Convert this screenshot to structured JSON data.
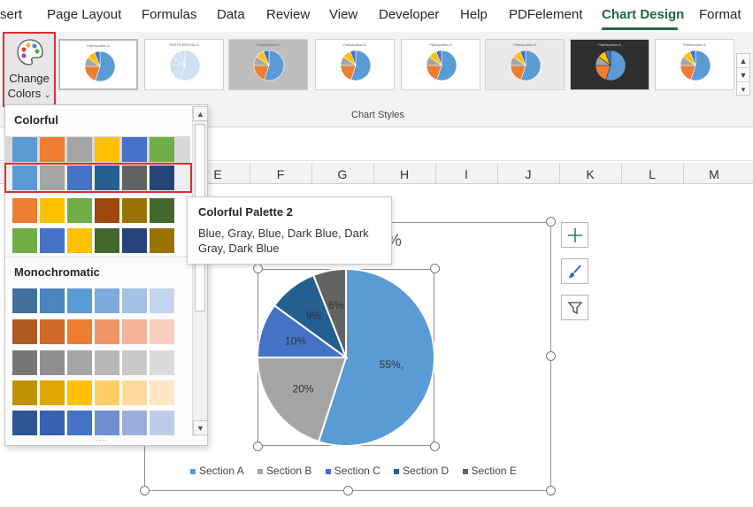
{
  "ribbon": {
    "tabs": [
      {
        "label": "sert"
      },
      {
        "label": "Page Layout"
      },
      {
        "label": "Formulas"
      },
      {
        "label": "Data"
      },
      {
        "label": "Review"
      },
      {
        "label": "View"
      },
      {
        "label": "Developer"
      },
      {
        "label": "Help"
      },
      {
        "label": "PDFelement"
      },
      {
        "label": "Chart Design",
        "active": true
      },
      {
        "label": "Format"
      }
    ],
    "change_colors": {
      "line1": "Change",
      "line2": "Colors"
    },
    "chart_styles_label": "Chart Styles",
    "style_thumbnails": [
      {
        "title": "Participation A",
        "selected": true
      },
      {
        "title": "PARTICIPATION A"
      },
      {
        "title": "Participation A"
      },
      {
        "title": "Participation A"
      },
      {
        "title": "Participation A"
      },
      {
        "title": "Participation A"
      },
      {
        "title": "Participation A"
      },
      {
        "title": "Participation A"
      }
    ]
  },
  "columns": [
    "E",
    "F",
    "G",
    "H",
    "I",
    "J",
    "K",
    "L",
    "M"
  ],
  "dropdown": {
    "colorful_heading": "Colorful",
    "monochromatic_heading": "Monochromatic",
    "colorful_rows": [
      [
        "#5b9bd5",
        "#ed7d31",
        "#a5a5a5",
        "#ffc000",
        "#4472c4",
        "#70ad47"
      ],
      [
        "#5b9bd5",
        "#a5a5a5",
        "#4472c4",
        "#255e91",
        "#636363",
        "#264478"
      ],
      [
        "#ed7d31",
        "#ffc000",
        "#70ad47",
        "#9e480e",
        "#997300",
        "#43682b"
      ],
      [
        "#70ad47",
        "#4472c4",
        "#ffc000",
        "#43682b",
        "#264478",
        "#997300"
      ]
    ],
    "mono_rows": [
      [
        "#41719c",
        "#4a85c1",
        "#5b9bd5",
        "#7faadb",
        "#a3c2e5",
        "#c3d6ef"
      ],
      [
        "#b15923",
        "#d1692a",
        "#ed7d31",
        "#f09466",
        "#f4b39a",
        "#f8cfc1"
      ],
      [
        "#777777",
        "#8f8f8f",
        "#a5a5a5",
        "#b8b8b8",
        "#c9c9c9",
        "#dbdbdb"
      ],
      [
        "#bf9000",
        "#dfa800",
        "#ffc000",
        "#ffcc66",
        "#ffd99c",
        "#ffe6c4"
      ],
      [
        "#2f5597",
        "#3862b0",
        "#4472c4",
        "#6f8fd0",
        "#9aaedb",
        "#c1cce8"
      ]
    ]
  },
  "tooltip": {
    "title": "Colorful Palette 2",
    "body": "Blue, Gray, Blue, Dark Blue, Dark Gray, Dark Blue"
  },
  "chart": {
    "title_fragment": "%"
  },
  "chart_data": {
    "type": "pie",
    "categories": [
      "Section A",
      "Section B",
      "Section C",
      "Section D",
      "Section E"
    ],
    "values": [
      55,
      20,
      10,
      9,
      6
    ],
    "data_labels": [
      "55%,",
      "20%",
      "10%",
      "9%",
      "6%"
    ],
    "colors": [
      "#5b9bd5",
      "#a5a5a5",
      "#4472c4",
      "#255e91",
      "#636363"
    ],
    "legend_position": "bottom",
    "title": ""
  }
}
